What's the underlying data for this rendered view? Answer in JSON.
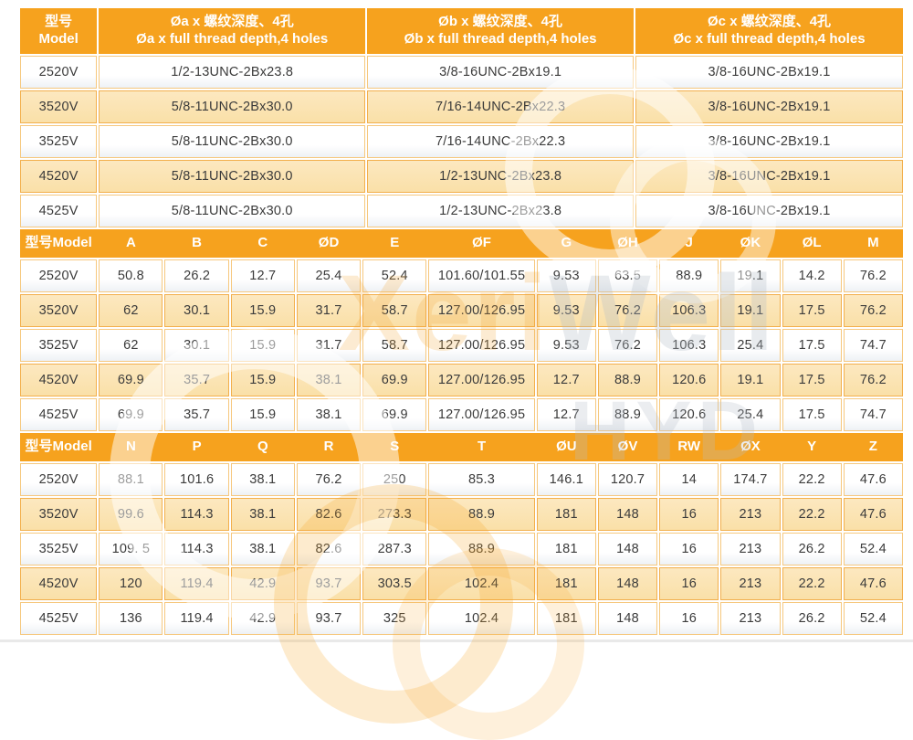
{
  "colors": {
    "header_bg": "#F6A21E",
    "header_text": "#FFFFFF",
    "row_cream": "#FAE0A8",
    "row_white": "#FFFFFF",
    "cell_border": "#F2AF4C",
    "body_text": "#3B3B3B"
  },
  "watermark": {
    "part1": "Xeri",
    "part2": "Well",
    "line2": "HYD"
  },
  "table1": {
    "model_header": {
      "zh": "型号",
      "en": "Model"
    },
    "headers": [
      {
        "zh": "Øa x 螺纹深度、4孔",
        "en": "Øa x full thread depth,4 holes"
      },
      {
        "zh": "Øb x 螺纹深度、4孔",
        "en": "Øb x full thread depth,4 holes"
      },
      {
        "zh": "Øc x 螺纹深度、4孔",
        "en": "Øc x full thread depth,4 holes"
      }
    ],
    "rows": [
      [
        "2520V",
        "1/2-13UNC-2Bx23.8",
        "3/8-16UNC-2Bx19.1",
        "3/8-16UNC-2Bx19.1"
      ],
      [
        "3520V",
        "5/8-11UNC-2Bx30.0",
        "7/16-14UNC-2Bx22.3",
        "3/8-16UNC-2Bx19.1"
      ],
      [
        "3525V",
        "5/8-11UNC-2Bx30.0",
        "7/16-14UNC-2Bx22.3",
        "3/8-16UNC-2Bx19.1"
      ],
      [
        "4520V",
        "5/8-11UNC-2Bx30.0",
        "1/2-13UNC-2Bx23.8",
        "3/8-16UNC-2Bx19.1"
      ],
      [
        "4525V",
        "5/8-11UNC-2Bx30.0",
        "1/2-13UNC-2Bx23.8",
        "3/8-16UNC-2Bx19.1"
      ]
    ]
  },
  "table2": {
    "headers": [
      "型号Model",
      "A",
      "B",
      "C",
      "ØD",
      "E",
      "ØF",
      "G",
      "ØH",
      "J",
      "ØK",
      "ØL",
      "M"
    ],
    "rows": [
      [
        "2520V",
        "50.8",
        "26.2",
        "12.7",
        "25.4",
        "52.4",
        "101.60/101.55",
        "9.53",
        "63.5",
        "88.9",
        "19.1",
        "14.2",
        "76.2"
      ],
      [
        "3520V",
        "62",
        "30.1",
        "15.9",
        "31.7",
        "58.7",
        "127.00/126.95",
        "9.53",
        "76.2",
        "106.3",
        "19.1",
        "17.5",
        "76.2"
      ],
      [
        "3525V",
        "62",
        "30.1",
        "15.9",
        "31.7",
        "58.7",
        "127.00/126.95",
        "9.53",
        "76.2",
        "106.3",
        "25.4",
        "17.5",
        "74.7"
      ],
      [
        "4520V",
        "69.9",
        "35.7",
        "15.9",
        "38.1",
        "69.9",
        "127.00/126.95",
        "12.7",
        "88.9",
        "120.6",
        "19.1",
        "17.5",
        "76.2"
      ],
      [
        "4525V",
        "69.9",
        "35.7",
        "15.9",
        "38.1",
        "69.9",
        "127.00/126.95",
        "12.7",
        "88.9",
        "120.6",
        "25.4",
        "17.5",
        "74.7"
      ]
    ]
  },
  "table3": {
    "headers": [
      "型号Model",
      "N",
      "P",
      "Q",
      "R",
      "S",
      "T",
      "ØU",
      "ØV",
      "RW",
      "ØX",
      "Y",
      "Z"
    ],
    "rows": [
      [
        "2520V",
        "88.1",
        "101.6",
        "38.1",
        "76.2",
        "250",
        "85.3",
        "146.1",
        "120.7",
        "14",
        "174.7",
        "22.2",
        "47.6"
      ],
      [
        "3520V",
        "99.6",
        "114.3",
        "38.1",
        "82.6",
        "273.3",
        "88.9",
        "181",
        "148",
        "16",
        "213",
        "22.2",
        "47.6"
      ],
      [
        "3525V",
        "109. 5",
        "114.3",
        "38.1",
        "82.6",
        "287.3",
        "88.9",
        "181",
        "148",
        "16",
        "213",
        "26.2",
        "52.4"
      ],
      [
        "4520V",
        "120",
        "119.4",
        "42.9",
        "93.7",
        "303.5",
        "102.4",
        "181",
        "148",
        "16",
        "213",
        "22.2",
        "47.6"
      ],
      [
        "4525V",
        "136",
        "119.4",
        "42.9",
        "93.7",
        "325",
        "102.4",
        "181",
        "148",
        "16",
        "213",
        "26.2",
        "52.4"
      ]
    ]
  }
}
